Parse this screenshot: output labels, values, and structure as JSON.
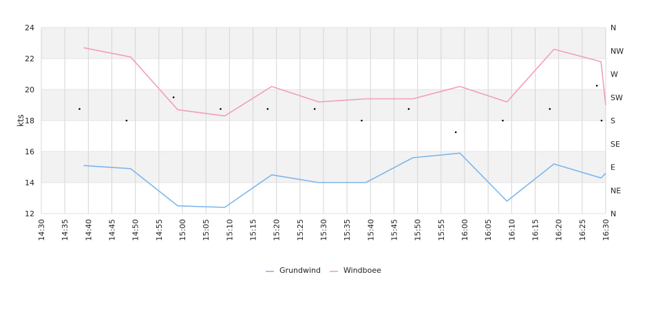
{
  "chart_data": {
    "type": "line",
    "ylabel": "kts",
    "ylim": [
      12,
      24
    ],
    "yticks": [
      "12",
      "14",
      "16",
      "18",
      "20",
      "22",
      "24"
    ],
    "x_ticks": [
      "14:30",
      "14:35",
      "14:40",
      "14:45",
      "14:50",
      "14:55",
      "15:00",
      "15:05",
      "15:10",
      "15:15",
      "15:20",
      "15:25",
      "15:30",
      "15:35",
      "15:40",
      "15:45",
      "15:50",
      "15:55",
      "16:00",
      "16:05",
      "16:10",
      "16:15",
      "16:20",
      "16:25",
      "16:30"
    ],
    "right_axis": [
      "N",
      "NW",
      "W",
      "SW",
      "S",
      "SE",
      "E",
      "NE",
      "N"
    ],
    "grid": true,
    "legend_position": "bottom",
    "series": [
      {
        "name": "Grundwind",
        "color": "#7cb5ec",
        "x": [
          "14:39",
          "14:49",
          "14:59",
          "15:09",
          "15:19",
          "15:29",
          "15:39",
          "15:49",
          "15:59",
          "16:09",
          "16:19",
          "16:29",
          "16:30"
        ],
        "values": [
          15.1,
          14.9,
          12.5,
          12.4,
          14.5,
          14.0,
          14.0,
          15.6,
          15.9,
          12.8,
          15.2,
          14.3,
          14.6
        ]
      },
      {
        "name": "Windboee",
        "color": "#f39bc1",
        "x": [
          "14:39",
          "14:49",
          "14:59",
          "15:09",
          "15:19",
          "15:29",
          "15:39",
          "15:49",
          "15:59",
          "16:09",
          "16:19",
          "16:29",
          "16:30"
        ],
        "values": [
          22.7,
          22.1,
          18.7,
          18.3,
          20.2,
          19.2,
          19.4,
          19.4,
          20.2,
          19.2,
          22.6,
          21.8,
          19.0
        ]
      }
    ],
    "direction_points": {
      "color": "#000000",
      "x": [
        "14:39",
        "14:49",
        "14:59",
        "15:09",
        "15:19",
        "15:29",
        "15:39",
        "15:49",
        "15:59",
        "16:09",
        "16:19",
        "16:29",
        "16:30"
      ],
      "values": [
        "SSW",
        "S",
        "SW",
        "SSW",
        "SSW",
        "SSW",
        "S",
        "SSW",
        "SSE",
        "S",
        "SSW",
        "WSW",
        "S"
      ]
    }
  }
}
